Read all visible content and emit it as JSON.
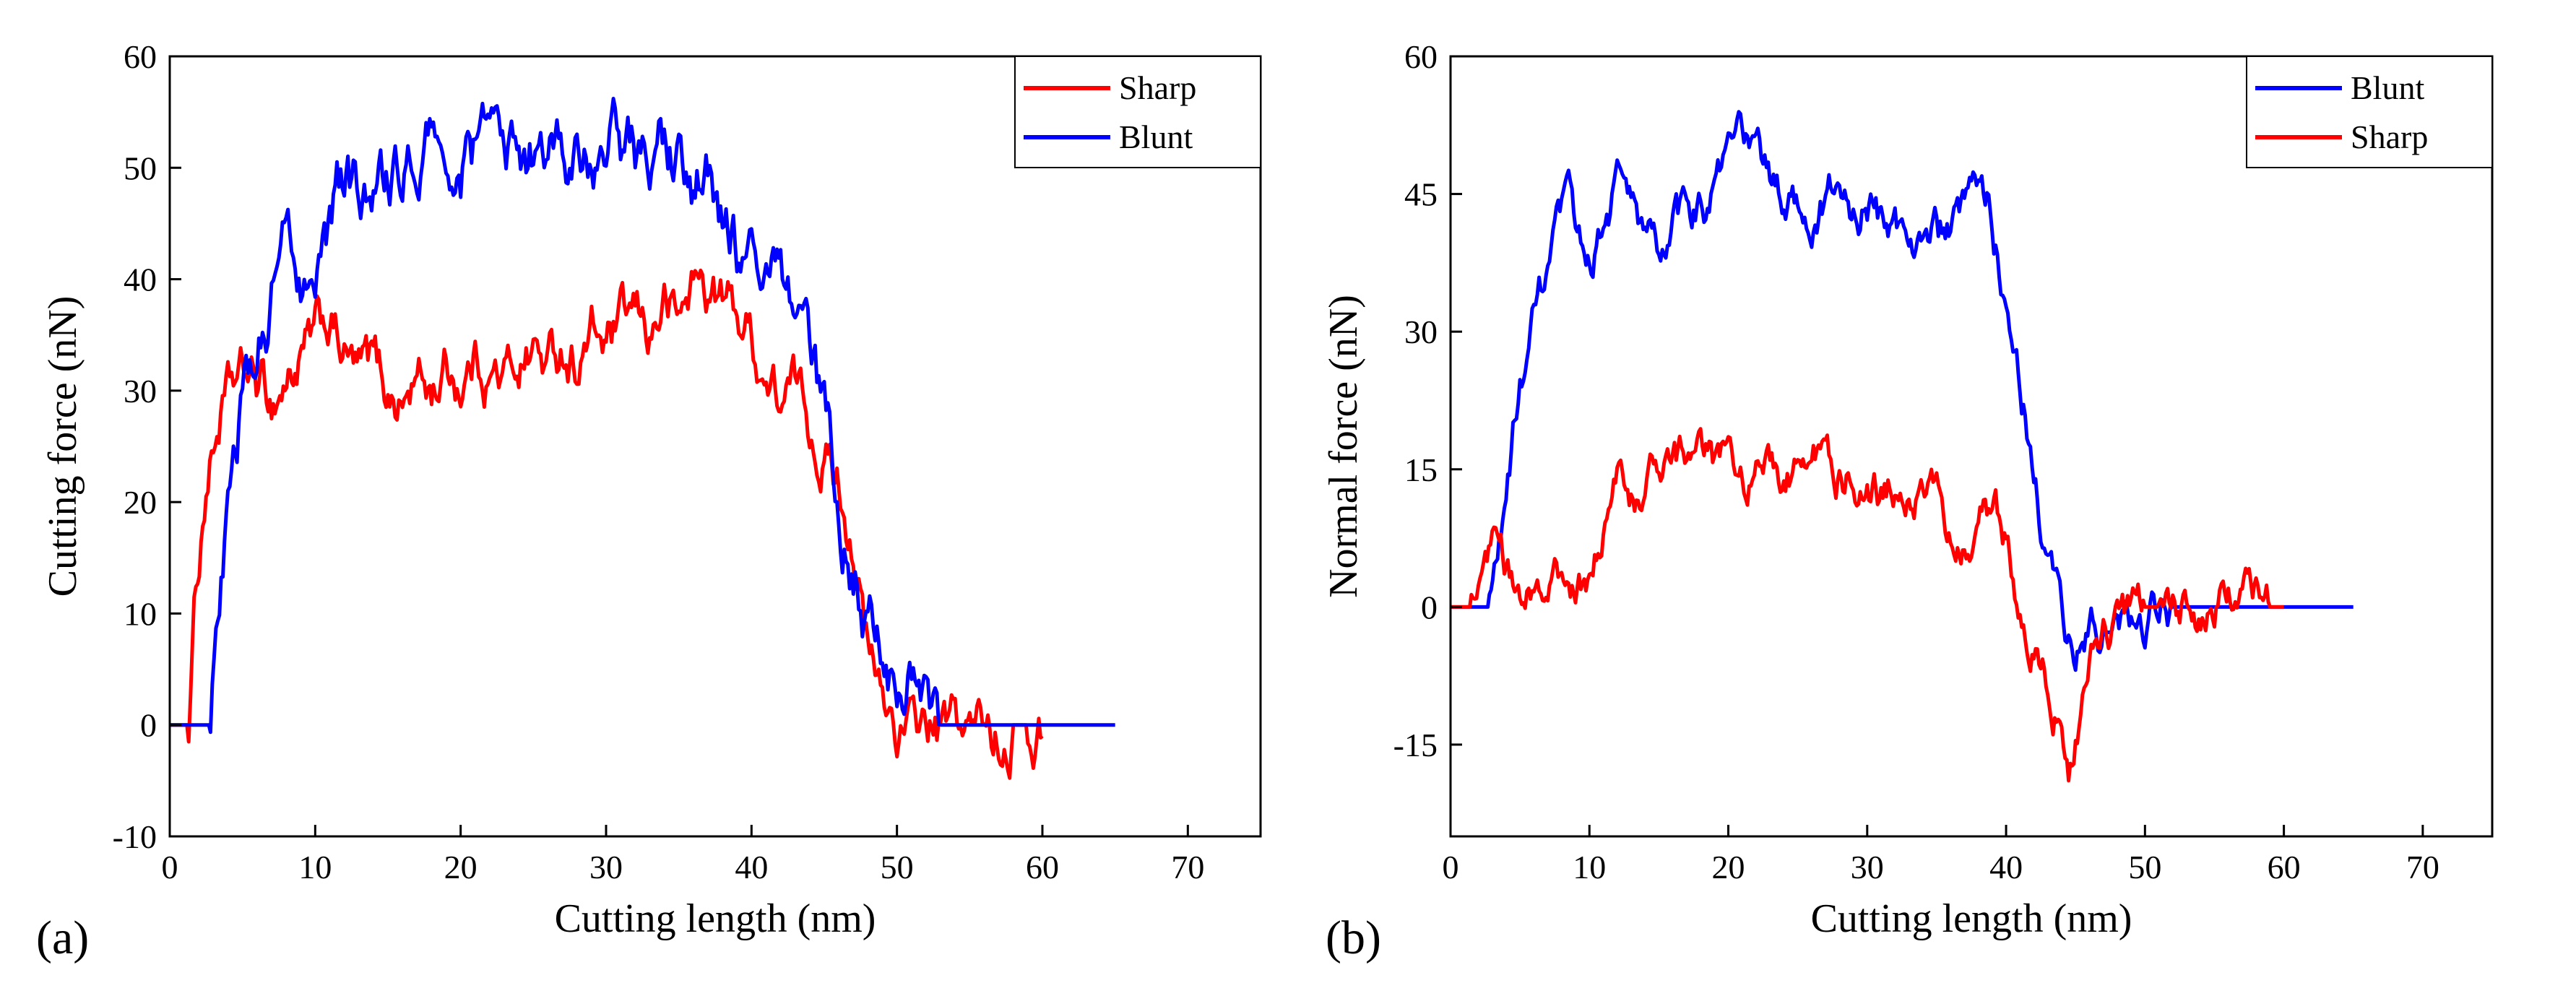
{
  "chart_data": [
    {
      "type": "line",
      "panel_label": "(a)",
      "xlabel": "Cutting length (nm)",
      "ylabel": "Cutting force (nN)",
      "xlim": [
        0,
        75
      ],
      "ylim": [
        -10,
        60
      ],
      "xticks": [
        0,
        10,
        20,
        30,
        40,
        50,
        60,
        70
      ],
      "yticks": [
        -10,
        0,
        10,
        20,
        30,
        40,
        50,
        60
      ],
      "legend_position": "top-right",
      "legend": [
        "Sharp",
        "Blunt"
      ],
      "series": [
        {
          "name": "Sharp",
          "color": "#ff0000",
          "noise": 1.6,
          "x": [
            0,
            1.3,
            1.8,
            2.5,
            3.5,
            4.5,
            5.5,
            7,
            8.5,
            10,
            11,
            12,
            13,
            14,
            15,
            16,
            17,
            18,
            19,
            20,
            21,
            22,
            23,
            24,
            25,
            26,
            27,
            28,
            29,
            30,
            31,
            32,
            33,
            34,
            35,
            36,
            37,
            38,
            39,
            40,
            41,
            42,
            43,
            44,
            45,
            46,
            47,
            47.5,
            48,
            49,
            50,
            51,
            52,
            53,
            54,
            55,
            56,
            57,
            58,
            59,
            60
          ],
          "y": [
            0,
            0,
            12,
            22,
            28,
            30,
            31,
            29,
            32,
            34,
            36,
            33,
            31,
            32,
            30,
            29,
            31,
            30,
            32,
            31,
            33,
            32,
            31,
            33,
            34,
            32,
            34,
            33,
            35,
            34,
            35,
            36,
            35,
            38,
            36,
            40,
            39,
            38,
            37,
            35,
            31,
            29,
            30,
            27,
            25,
            22,
            17,
            12,
            6,
            2,
            0,
            -1,
            0,
            -1,
            0,
            -1,
            0,
            -1,
            0,
            0,
            -1
          ]
        },
        {
          "name": "Blunt",
          "color": "#0000ff",
          "noise": 2.0,
          "x": [
            0,
            2,
            2.8,
            3.3,
            4,
            5,
            6,
            7,
            7.5,
            8,
            9,
            10,
            11,
            12,
            13,
            14,
            15,
            16,
            17,
            18,
            19,
            20,
            21,
            22,
            23,
            24,
            25,
            26,
            27,
            28,
            29,
            30,
            31,
            32,
            33,
            34,
            35,
            36,
            37,
            38,
            39,
            40,
            41,
            42,
            42.5,
            43,
            44,
            45,
            46,
            47,
            48,
            49,
            50,
            51,
            52,
            52.5,
            53,
            54,
            55,
            60,
            65
          ],
          "y": [
            0,
            0,
            0,
            10,
            22,
            30,
            34,
            38,
            42,
            44,
            41,
            44,
            46,
            48,
            47,
            49,
            47,
            49,
            50,
            52,
            51,
            50,
            51,
            52,
            51,
            50,
            52,
            51,
            53,
            50,
            51,
            53,
            52,
            50,
            51,
            52,
            50,
            48,
            49,
            46,
            42,
            40,
            40,
            39,
            38,
            36,
            31,
            26,
            20,
            14,
            9,
            6,
            5,
            4,
            2,
            1,
            0,
            0,
            0,
            0,
            0
          ]
        }
      ]
    },
    {
      "type": "line",
      "panel_label": "(b)",
      "xlabel": "Cutting length (nm)",
      "ylabel": "Normal force (nN)",
      "xlim": [
        0,
        75
      ],
      "ylim": [
        -25,
        60
      ],
      "xticks": [
        0,
        10,
        20,
        30,
        40,
        50,
        60,
        70
      ],
      "yticks": [
        -15,
        0,
        15,
        30,
        45,
        60
      ],
      "legend_position": "top-right",
      "legend": [
        "Blunt",
        "Sharp"
      ],
      "series": [
        {
          "name": "Blunt",
          "color": "#0000ff",
          "noise": 1.6,
          "x": [
            0,
            2,
            2.8,
            3.5,
            4.5,
            5.5,
            6.5,
            7.5,
            8.5,
            9.5,
            10.5,
            11.5,
            12,
            13,
            14,
            15,
            16,
            17,
            18,
            19,
            20,
            21,
            22,
            23,
            24,
            25,
            26,
            27,
            28,
            29,
            30,
            31,
            32,
            33,
            34,
            35,
            36,
            37,
            38,
            38.5,
            39,
            40,
            41,
            42,
            43,
            44,
            44.5,
            45,
            46,
            47,
            48,
            49,
            50,
            51,
            52,
            53,
            54,
            60,
            65
          ],
          "y": [
            0,
            0,
            0,
            6,
            18,
            28,
            33,
            39,
            42,
            38,
            40,
            44,
            47,
            43,
            40,
            38,
            41,
            42,
            44,
            45,
            48,
            50,
            51,
            46,
            44,
            45,
            43,
            44,
            45,
            43,
            44,
            42,
            41,
            40,
            42,
            41,
            40,
            42,
            44,
            43,
            42,
            35,
            26,
            15,
            6,
            -2,
            -5,
            -4,
            -3,
            -3,
            -2,
            -2,
            -1,
            -1,
            0,
            0,
            0,
            0,
            0
          ]
        },
        {
          "name": "Sharp",
          "color": "#ff0000",
          "noise": 1.5,
          "x": [
            0,
            1.5,
            2,
            3,
            4,
            5,
            6,
            7,
            8,
            9,
            10,
            11,
            12,
            13,
            14,
            15,
            16,
            17,
            18,
            19,
            20,
            21,
            22,
            23,
            24,
            25,
            26,
            27,
            28,
            29,
            30,
            31,
            32,
            33,
            34,
            35,
            36,
            37,
            38,
            39,
            40,
            41,
            42,
            43,
            44,
            44.5,
            45,
            46,
            47,
            48,
            49,
            50,
            51,
            52,
            53,
            54,
            55,
            56,
            57,
            58,
            59,
            60
          ],
          "y": [
            0,
            0,
            3,
            5,
            3,
            2,
            4,
            1,
            2,
            0,
            2,
            8,
            14,
            12,
            13,
            14,
            15,
            16,
            17,
            15,
            16,
            15,
            14,
            16,
            15,
            14,
            16,
            18,
            15,
            14,
            13,
            12,
            13,
            12,
            14,
            11,
            8,
            6,
            9,
            11,
            7,
            1,
            -3,
            -8,
            -12,
            -16,
            -12,
            -6,
            -3,
            -1,
            -1,
            0,
            0,
            1,
            1,
            0,
            1,
            2,
            1,
            1,
            0,
            0
          ]
        }
      ]
    }
  ]
}
